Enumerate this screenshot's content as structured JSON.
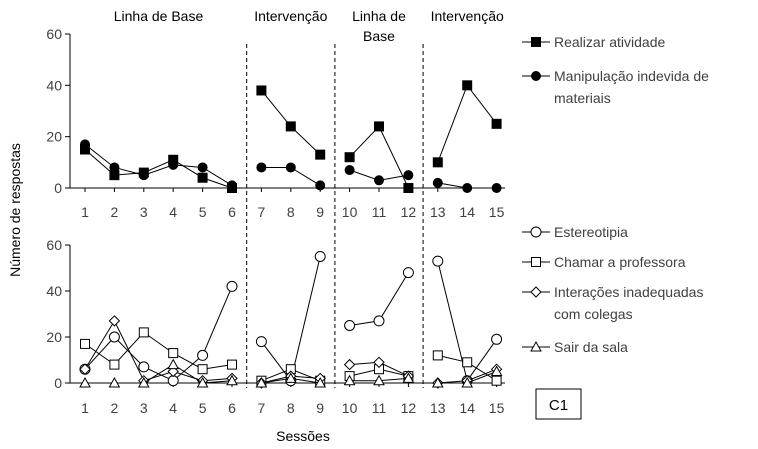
{
  "chart_data": {
    "type": "line",
    "ylabel": "Número de respostas",
    "xlabel": "Sessões",
    "badge": "C1",
    "phases": [
      {
        "label_lines": [
          "Linha de Base"
        ],
        "sessions": [
          1,
          6
        ]
      },
      {
        "label_lines": [
          "Intervenção"
        ],
        "sessions": [
          7,
          9
        ]
      },
      {
        "label_lines": [
          "Linha de",
          "Base"
        ],
        "sessions": [
          10,
          12
        ]
      },
      {
        "label_lines": [
          "Intervenção"
        ],
        "sessions": [
          13,
          15
        ]
      }
    ],
    "x_ticks": [
      "1",
      "2",
      "3",
      "4",
      "5",
      "6",
      "7",
      "8",
      "9",
      "10",
      "11",
      "12",
      "13",
      "14",
      "15"
    ],
    "panels": [
      {
        "ylim": [
          0,
          60
        ],
        "y_ticks": [
          "0",
          "20",
          "40",
          "60"
        ],
        "series": [
          {
            "legend_lines": [
              "Realizar atividade"
            ],
            "marker": "square",
            "filled": true,
            "values": [
              15,
              5,
              6,
              11,
              4,
              0,
              38,
              24,
              13,
              12,
              24,
              0,
              10,
              40,
              25
            ]
          },
          {
            "legend_lines": [
              "Manipulação indevida de",
              "materiais"
            ],
            "marker": "circle",
            "filled": true,
            "values": [
              17,
              8,
              5,
              9,
              8,
              1,
              8,
              8,
              1,
              7,
              3,
              5,
              2,
              0,
              0
            ]
          }
        ]
      },
      {
        "ylim": [
          0,
          60
        ],
        "y_ticks": [
          "0",
          "20",
          "40",
          "60"
        ],
        "series": [
          {
            "legend_lines": [
              "Estereotipia"
            ],
            "marker": "circle",
            "filled": false,
            "values": [
              6,
              20,
              7,
              1,
              12,
              42,
              18,
              1,
              55,
              25,
              27,
              48,
              53,
              1,
              19
            ]
          },
          {
            "legend_lines": [
              "Chamar a professora"
            ],
            "marker": "square",
            "filled": false,
            "values": [
              17,
              8,
              22,
              13,
              6,
              8,
              1,
              6,
              1,
              3,
              6,
              3,
              12,
              9,
              1
            ]
          },
          {
            "legend_lines": [
              "Interações inadequadas",
              "com colegas"
            ],
            "marker": "diamond",
            "filled": false,
            "values": [
              6,
              27,
              1,
              5,
              1,
              2,
              0,
              3,
              2,
              8,
              9,
              3,
              0,
              1,
              6
            ]
          },
          {
            "legend_lines": [
              "Sair da sala"
            ],
            "marker": "triangle",
            "filled": false,
            "values": [
              0,
              0,
              0,
              8,
              0,
              1,
              0,
              2,
              0,
              1,
              1,
              2,
              0,
              0,
              5
            ]
          }
        ]
      }
    ]
  }
}
